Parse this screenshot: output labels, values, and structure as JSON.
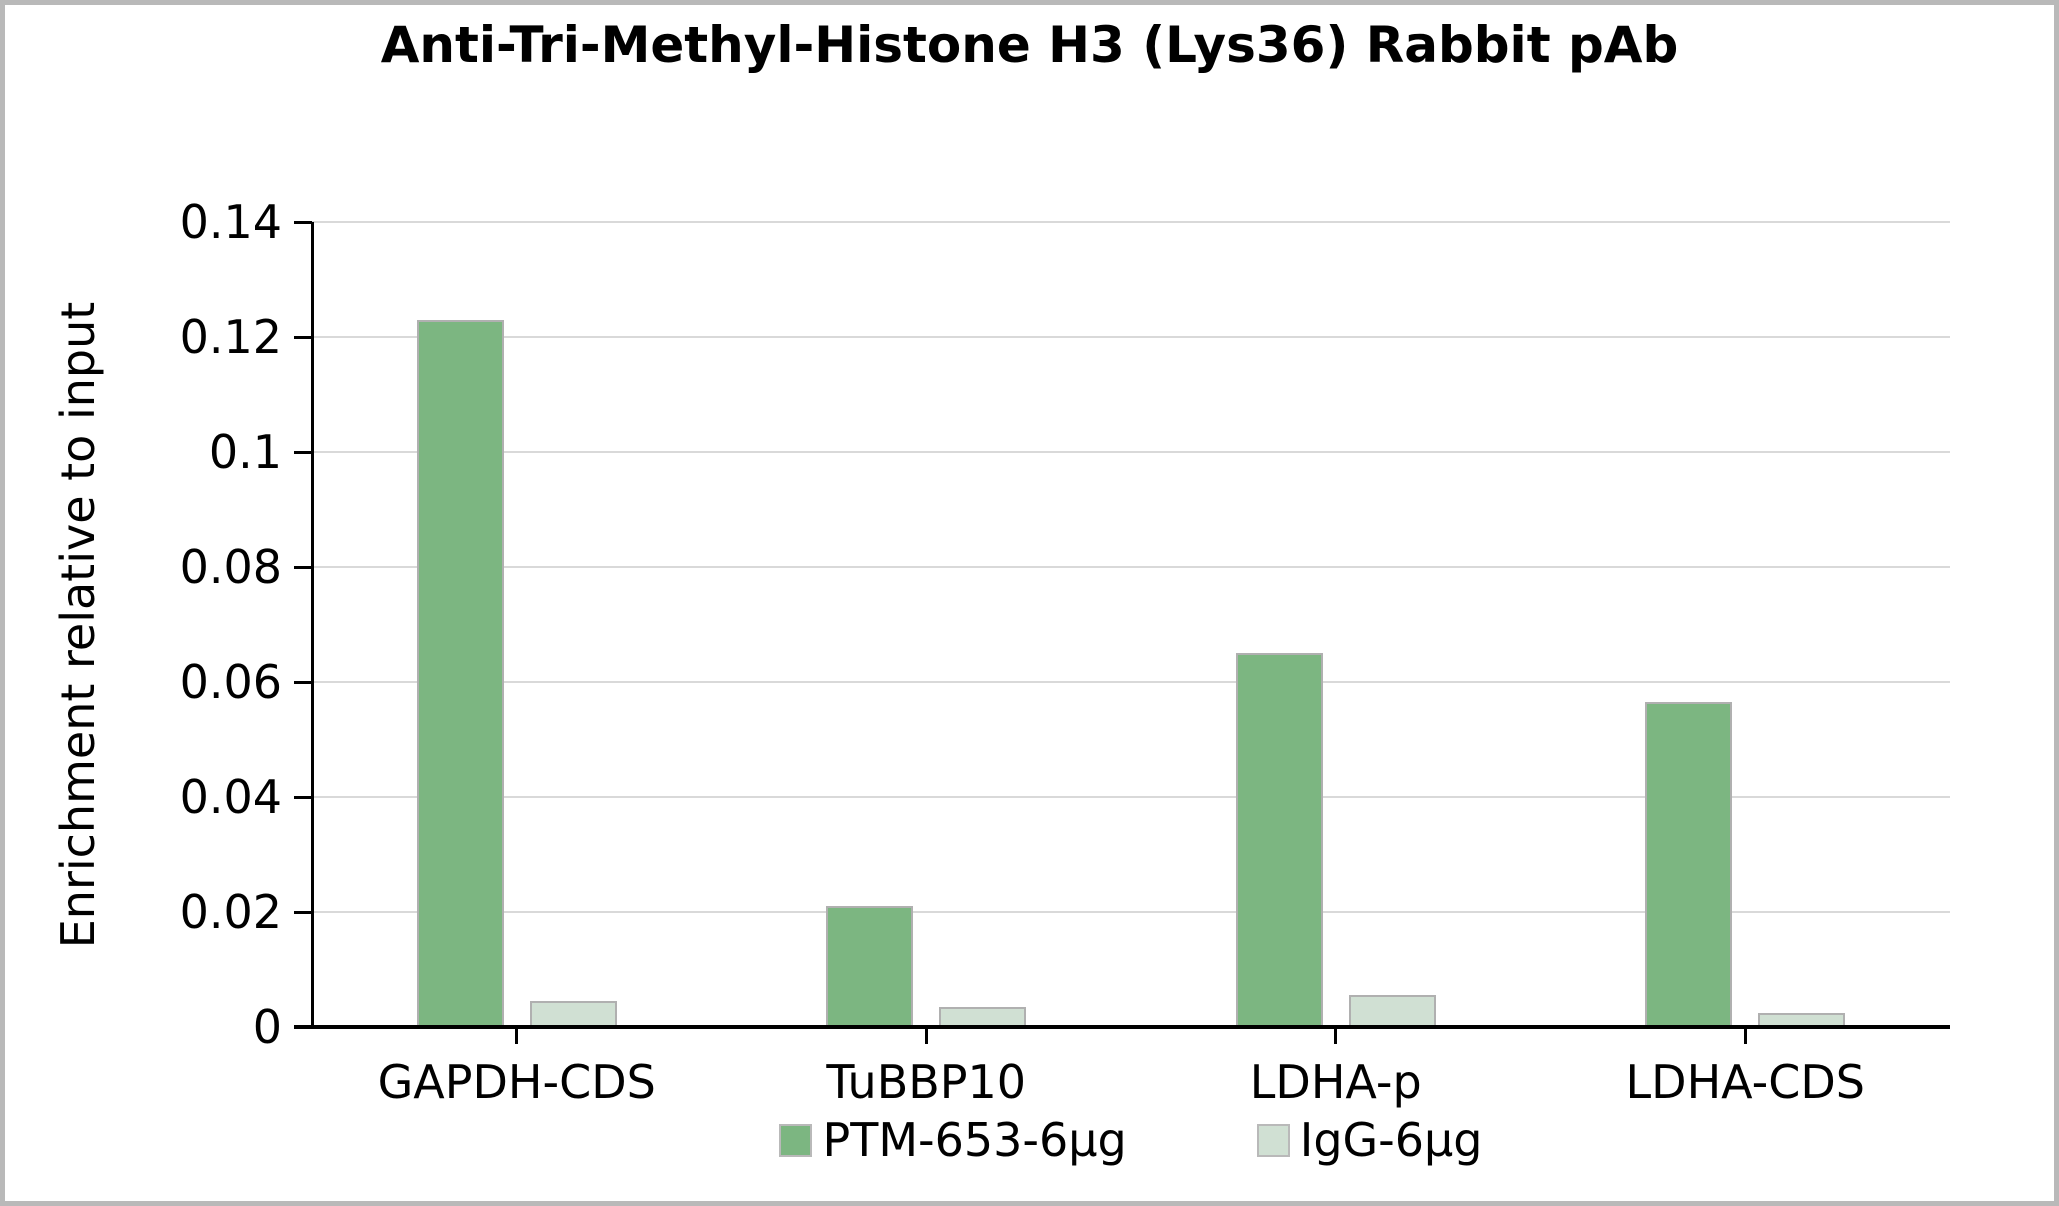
{
  "chart_data": {
    "type": "bar",
    "title": "Anti-Tri-Methyl-Histone H3 (Lys36) Rabbit pAb",
    "ylabel": "Enrichment relative to input",
    "xlabel": "",
    "categories": [
      "GAPDH-CDS",
      "TuBBP10",
      "LDHA-p",
      "LDHA-CDS"
    ],
    "series": [
      {
        "name": "PTM-653-6µg",
        "color": "#7cb681",
        "values": [
          0.123,
          0.021,
          0.065,
          0.0565
        ]
      },
      {
        "name": "IgG-6µg",
        "color": "#d0e0d3",
        "values": [
          0.0045,
          0.0035,
          0.0055,
          0.0025
        ]
      }
    ],
    "ylim": [
      0,
      0.14
    ],
    "yticks": [
      {
        "value": 0,
        "label": "0"
      },
      {
        "value": 0.02,
        "label": "0.02"
      },
      {
        "value": 0.04,
        "label": "0.04"
      },
      {
        "value": 0.06,
        "label": "0.06"
      },
      {
        "value": 0.08,
        "label": "0.08"
      },
      {
        "value": 0.1,
        "label": "0.1"
      },
      {
        "value": 0.12,
        "label": "0.12"
      },
      {
        "value": 0.14,
        "label": "0.14"
      }
    ],
    "grid": true,
    "legend_position": "bottom",
    "colors": {
      "grid": "#d9d9d9",
      "axis": "#000000",
      "bar_border": "#b0b0b0",
      "frame_border": "#b9b9b9",
      "background": "#ffffff"
    }
  }
}
